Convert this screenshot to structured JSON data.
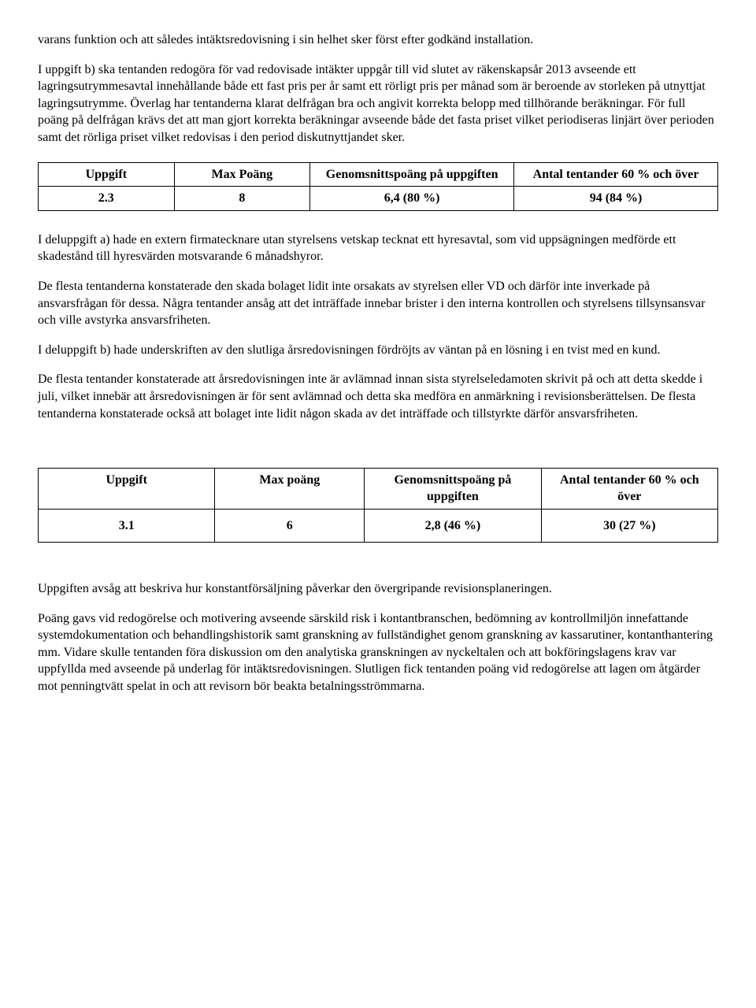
{
  "paragraphs_top": [
    "varans funktion och att således intäktsredovisning i sin helhet sker först efter godkänd installation.",
    "I uppgift b) ska tentanden redogöra för vad redovisade intäkter uppgår till vid slutet av räkenskapsår 2013 avseende ett lagringsutrymmesavtal innehållande både ett fast pris per år samt ett rörligt pris per månad som är beroende av storleken på utnyttjat lagringsutrymme. Överlag har tentanderna klarat delfrågan bra och angivit korrekta belopp med tillhörande beräkningar. För full poäng på delfrågan krävs det att man gjort korrekta beräkningar avseende både det fasta priset vilket periodiseras linjärt över perioden samt det rörliga priset vilket redovisas i den period diskutnyttjandet sker."
  ],
  "table1": {
    "columns": [
      "Uppgift",
      "Max Poäng",
      "Genomsnittspoäng på uppgiften",
      "Antal tentander 60 % och över"
    ],
    "rows": [
      [
        "2.3",
        "8",
        "6,4 (80 %)",
        "94 (84 %)"
      ]
    ]
  },
  "paragraphs_mid": [
    "I deluppgift a) hade en extern firmatecknare utan styrelsens vetskap tecknat ett hyresavtal, som vid uppsägningen medförde ett skadestånd till hyresvärden motsvarande 6 månadshyror.",
    "De flesta tentanderna konstaterade den skada bolaget lidit inte orsakats av styrelsen eller VD och därför inte inverkade på ansvarsfrågan för dessa. Några tentander ansåg att det inträffade innebar brister i den interna kontrollen och styrelsens tillsynsansvar och ville avstyrka ansvarsfriheten.",
    "I deluppgift b) hade underskriften av den slutliga årsredovisningen fördröjts av väntan på en lösning i en tvist med en kund.",
    "De flesta tentander konstaterade att årsredovisningen inte är avlämnad innan sista styrelseledamoten skrivit på och att detta skedde i juli, vilket innebär att årsredovisningen är för sent avlämnad och detta ska medföra en anmärkning i revisionsberättelsen. De flesta tentanderna konstaterade också att bolaget inte lidit någon skada av det inträffade och tillstyrkte därför ansvarsfriheten."
  ],
  "table2": {
    "columns": [
      "Uppgift",
      "Max poäng",
      "Genomsnittspoäng på uppgiften",
      "Antal tentander 60 % och över"
    ],
    "rows": [
      [
        "3.1",
        "6",
        "2,8 (46 %)",
        "30 (27 %)"
      ]
    ]
  },
  "paragraphs_bottom": [
    "Uppgiften avsåg att beskriva hur konstantförsäljning påverkar den övergripande revisionsplaneringen.",
    "Poäng gavs vid redogörelse och motivering avseende särskild risk i kontantbranschen, bedömning av kontrollmiljön innefattande systemdokumentation och behandlingshistorik samt granskning av fullständighet genom granskning av kassarutiner, kontanthantering mm. Vidare skulle tentanden föra diskussion om den analytiska granskningen av nyckeltalen och att bokföringslagens krav var uppfyllda med avseende på underlag för intäktsredovisningen. Slutligen fick tentanden poäng vid redogörelse att lagen om åtgärder mot penningtvätt spelat in och att revisorn bör beakta betalningsströmmarna."
  ]
}
